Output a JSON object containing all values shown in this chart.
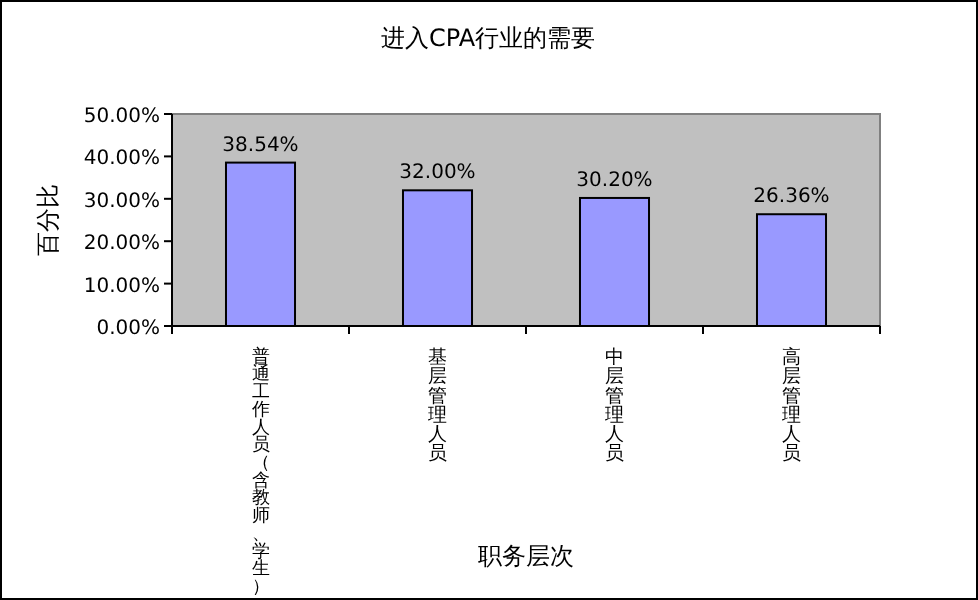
{
  "chart_data": {
    "type": "bar",
    "title": "进入CPA行业的需要",
    "xlabel": "职务层次",
    "ylabel": "百分比",
    "categories": [
      "普通工作人员（含教师、学生）",
      "基层管理人员",
      "中层管理人员",
      "高层管理人员"
    ],
    "values": [
      38.54,
      32.0,
      30.2,
      26.36
    ],
    "value_labels": [
      "38.54%",
      "32.00%",
      "30.20%",
      "26.36%"
    ],
    "color": "#9999ff",
    "ylim": [
      0,
      50
    ],
    "yticks": [
      {
        "value": 0,
        "label": "0.00%"
      },
      {
        "value": 10,
        "label": "10.00%"
      },
      {
        "value": 20,
        "label": "20.00%"
      },
      {
        "value": 30,
        "label": "30.00%"
      },
      {
        "value": 40,
        "label": "40.00%"
      },
      {
        "value": 50,
        "label": "50.00%"
      }
    ],
    "grid": false
  }
}
